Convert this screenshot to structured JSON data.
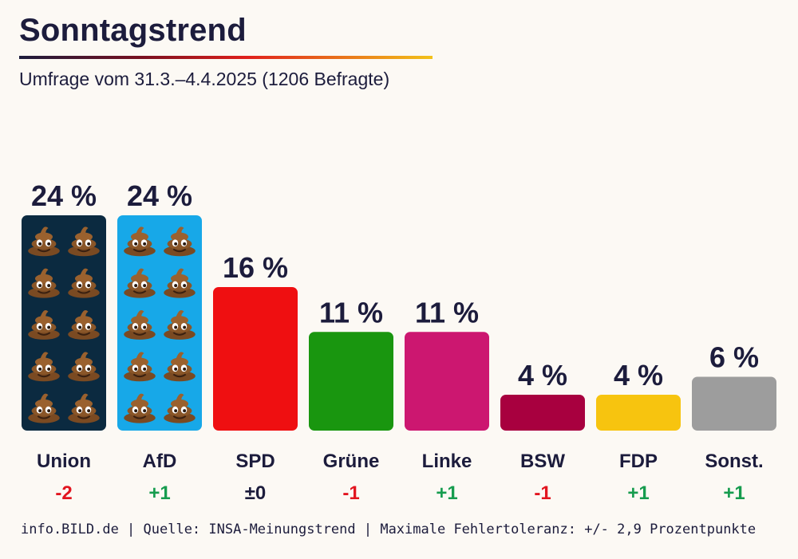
{
  "header": {
    "title": "Sonntagstrend",
    "subtitle": "Umfrage vom 31.3.–4.4.2025 (1206 Befragte)"
  },
  "footer": {
    "source": "info.BILD.de | Quelle: INSA-Meinungstrend | Maximale Fehlertoleranz: +/- 2,9 Prozentpunkte"
  },
  "chart_data": {
    "type": "bar",
    "title": "Sonntagstrend",
    "subtitle": "Umfrage vom 31.3.–4.4.2025 (1206 Befragte)",
    "xlabel": "",
    "ylabel": "",
    "ylim": [
      0,
      24
    ],
    "grid": false,
    "value_suffix": " %",
    "categories": [
      "Union",
      "AfD",
      "SPD",
      "Grüne",
      "Linke",
      "BSW",
      "FDP",
      "Sonst."
    ],
    "values": [
      24,
      24,
      16,
      11,
      11,
      4,
      4,
      6
    ],
    "changes": [
      "-2",
      "+1",
      "±0",
      "-1",
      "+1",
      "-1",
      "+1",
      "+1"
    ],
    "colors": [
      "#0b2a40",
      "#17a8e8",
      "#ef0f11",
      "#19960f",
      "#cc1770",
      "#a8003f",
      "#f7c40f",
      "#9d9d9d"
    ],
    "change_colors": {
      "negative": "#e2151f",
      "positive": "#169c4e",
      "neutral": "#1c1c3c"
    },
    "overlay_icon": "pile-of-poo-emoji",
    "overlay_on": [
      "Union",
      "AfD"
    ]
  }
}
